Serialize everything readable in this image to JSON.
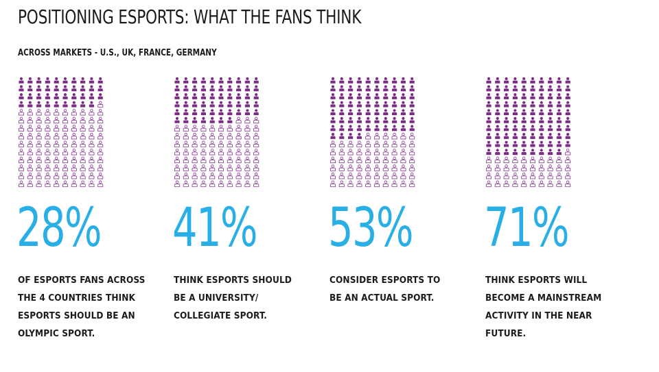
{
  "title": "POSITIONING ESPORTS: WHAT THE FANS THINK",
  "subtitle": "ACROSS MARKETS - U.S., UK, FRANCE, GERMANY",
  "colors": {
    "filled": "#7b2d86",
    "outline": "#8b3a96",
    "accent": "#29aee6",
    "text": "#1b1b1b"
  },
  "icon": "person-icon",
  "chart_data": {
    "type": "pictograph",
    "grid": {
      "columns": 10,
      "rows": 14,
      "total_icons": 140
    },
    "unit": "percent of esports fans",
    "series": [
      {
        "name": "Olympic sport",
        "value": 28,
        "label": "28%",
        "description_lines": [
          "OF ESPORTS FANS ACROSS",
          "THE 4 COUNTRIES THINK",
          "ESPORTS SHOULD BE AN",
          "OLYMPIC SPORT."
        ]
      },
      {
        "name": "University/collegiate sport",
        "value": 41,
        "label": "41%",
        "description_lines": [
          "THINK ESPORTS SHOULD",
          "BE A UNIVERSITY/",
          "COLLEGIATE SPORT."
        ]
      },
      {
        "name": "Actual sport",
        "value": 53,
        "label": "53%",
        "description_lines": [
          "CONSIDER ESPORTS TO",
          "BE AN ACTUAL SPORT."
        ]
      },
      {
        "name": "Mainstream activity",
        "value": 71,
        "label": "71%",
        "description_lines": [
          "THINK ESPORTS WILL",
          "BECOME A MAINSTREAM",
          "ACTIVITY IN THE NEAR",
          "FUTURE."
        ]
      }
    ]
  }
}
